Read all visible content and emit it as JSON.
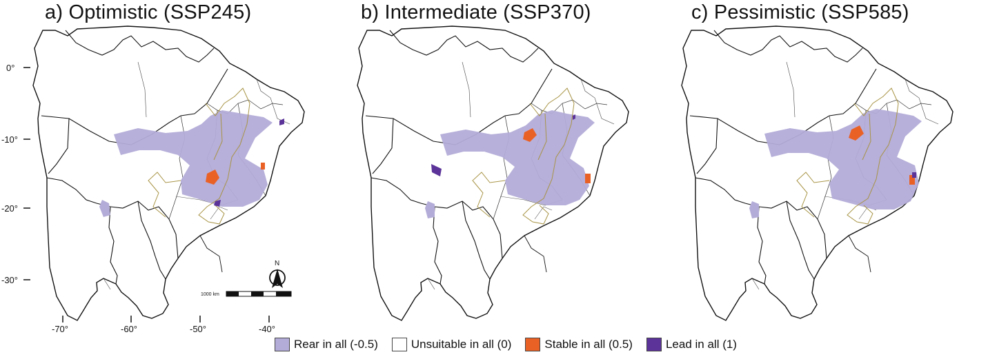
{
  "panels": [
    {
      "title": "a) Optimistic (SSP245)"
    },
    {
      "title": "b) Intermediate (SSP370)"
    },
    {
      "title": "c) Pessimistic (SSP585)"
    }
  ],
  "axes": {
    "lat_ticks": [
      "0°",
      "-10°",
      "-20°",
      "-30°"
    ],
    "lon_ticks": [
      "-70°",
      "-60°",
      "-50°",
      "-40°"
    ]
  },
  "scalebar": {
    "label": "1000 km"
  },
  "north_arrow": {
    "label": "N"
  },
  "legend": [
    {
      "label": "Rear in all (-0.5)",
      "color": "#b3acd8"
    },
    {
      "label": "Unsuitable in all (0)",
      "color": "#ffffff"
    },
    {
      "label": "Stable in all (0.5)",
      "color": "#ea6126"
    },
    {
      "label": "Lead in all (1)",
      "color": "#5b3399"
    }
  ],
  "colors": {
    "country_border": "#111111",
    "state_border": "#555555",
    "river_overlay": "#a89446"
  }
}
